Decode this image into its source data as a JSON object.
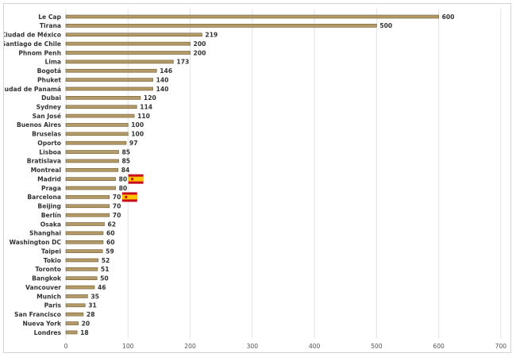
{
  "colors": {
    "bar": "#b49a67",
    "bar_edge": "#6d5a36",
    "flag_red": "#c60b1e",
    "flag_yellow": "#ffc400"
  },
  "chart_data": {
    "type": "bar",
    "orientation": "horizontal",
    "title": "",
    "xlabel": "",
    "ylabel": "",
    "xlim": [
      0,
      700
    ],
    "xticks": [
      0,
      100,
      200,
      300,
      400,
      500,
      600,
      700
    ],
    "grid": true,
    "categories": [
      "Le Cap",
      "Tirana",
      "Ciudad de México",
      "Santiago de Chile",
      "Phnom Penh",
      "Lima",
      "Bogotá",
      "Phuket",
      "Ciudad de Panamá",
      "Dubai",
      "Sydney",
      "San José",
      "Buenos Aires",
      "Bruselas",
      "Oporto",
      "Lisboa",
      "Bratislava",
      "Montreal",
      "Madrid",
      "Praga",
      "Barcelona",
      "Beijing",
      "Berlín",
      "Osaka",
      "Shanghai",
      "Washington DC",
      "Taipei",
      "Tokio",
      "Toronto",
      "Bangkok",
      "Vancouver",
      "Munich",
      "Paris",
      "San Francisco",
      "Nueva York",
      "Londres"
    ],
    "values": [
      600,
      500,
      219,
      200,
      200,
      173,
      146,
      140,
      140,
      120,
      114,
      110,
      100,
      100,
      97,
      85,
      85,
      84,
      80,
      80,
      70,
      70,
      70,
      62,
      60,
      60,
      59,
      52,
      51,
      50,
      46,
      35,
      31,
      28,
      20,
      18
    ],
    "flagged": [
      "Madrid",
      "Barcelona"
    ],
    "flag_icon": "spain-flag-icon"
  }
}
